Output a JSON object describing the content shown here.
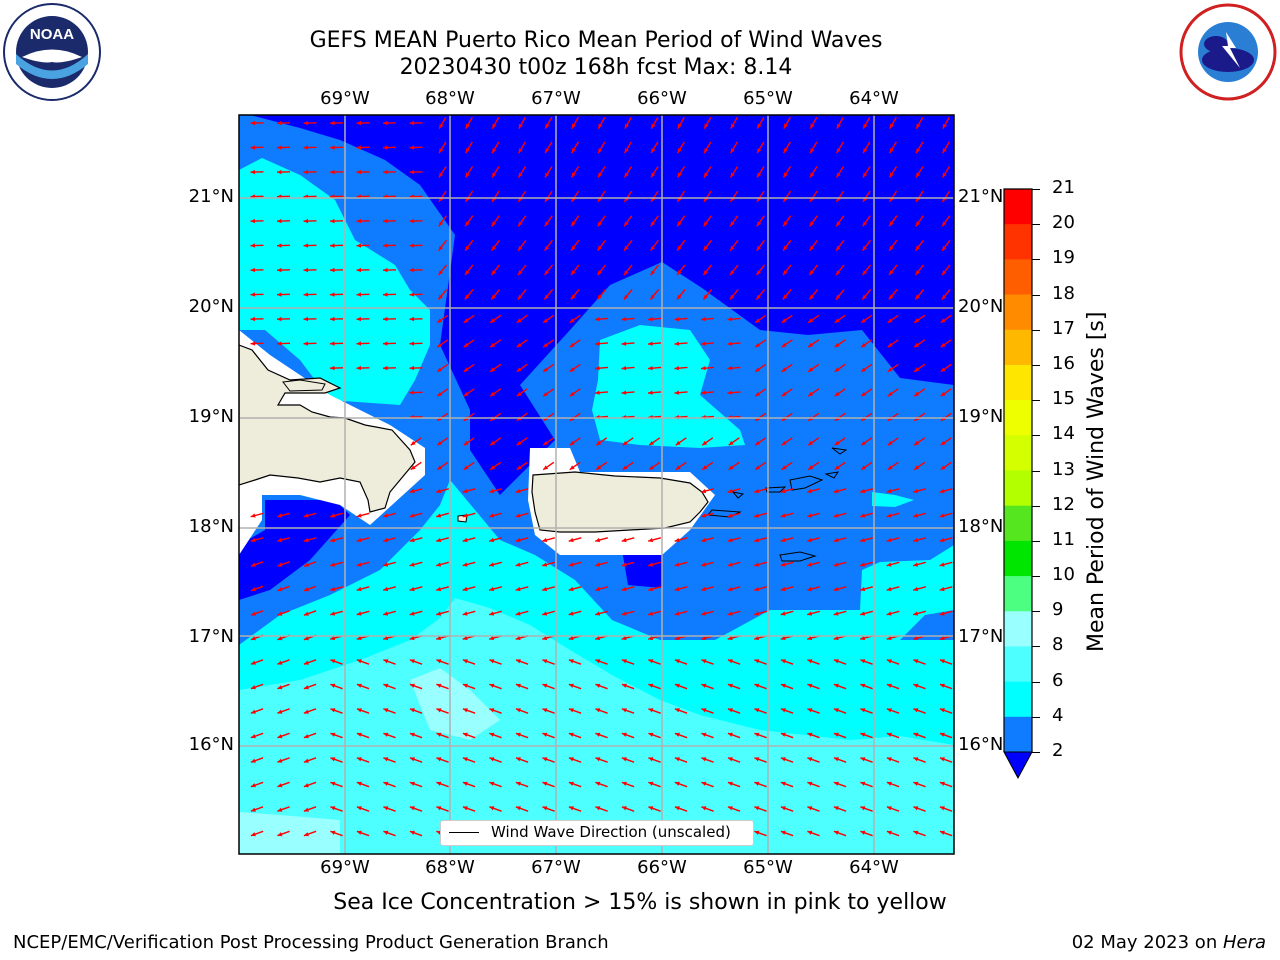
{
  "header": {
    "title_line1": "GEFS MEAN Puerto Rico Mean Period of Wind Waves",
    "title_line2": "20230430 t00z 168h fcst   Max: 8.14"
  },
  "logos": {
    "left": {
      "name": "noaa-logo",
      "text": "NOAA",
      "ring_text": "NATIONAL OCEANIC AND ATMOSPHERIC ADMINISTRATION · U.S. DEPARTMENT OF COMMERCE"
    },
    "right": {
      "name": "nws-logo",
      "ring_text": "NATIONAL WEATHER SERVICE"
    }
  },
  "map": {
    "lon_labels": [
      "69°W",
      "68°W",
      "67°W",
      "66°W",
      "65°W",
      "64°W"
    ],
    "lat_labels": [
      "21°N",
      "20°N",
      "19°N",
      "18°N",
      "17°N",
      "16°N"
    ],
    "colors": {
      "lt2": "#0000ff",
      "c2_4": "#0f7cff",
      "c4_6": "#00ffff",
      "c6_8": "#4dffff",
      "c8_9": "#99ffff",
      "land": "#eeecdb",
      "arrow": "#ff0000",
      "grid": "#b0b0b0"
    },
    "legend_label": "Wind Wave Direction (unscaled)"
  },
  "colorbar": {
    "label": "Mean Period of Wind Waves [s]",
    "ticks": [
      "21",
      "20",
      "19",
      "18",
      "17",
      "16",
      "15",
      "14",
      "13",
      "12",
      "11",
      "10",
      "9",
      "8",
      "6",
      "4",
      "2"
    ],
    "colors": [
      "#ff0000",
      "#ff3300",
      "#ff5e00",
      "#ff8c00",
      "#ffb800",
      "#ffe600",
      "#eeff00",
      "#d4ff00",
      "#b3ff00",
      "#55e620",
      "#00e600",
      "#4cff80",
      "#99ffff",
      "#4dffff",
      "#00ffff",
      "#0f7cff"
    ],
    "under_color": "#0000ff"
  },
  "footer": {
    "note": "Sea Ice Concentration > 15% is shown in pink to yellow",
    "left": "NCEP/EMC/Verification Post Processing Product Generation Branch",
    "right_date": "02 May 2023 on ",
    "right_host": "Hera"
  }
}
